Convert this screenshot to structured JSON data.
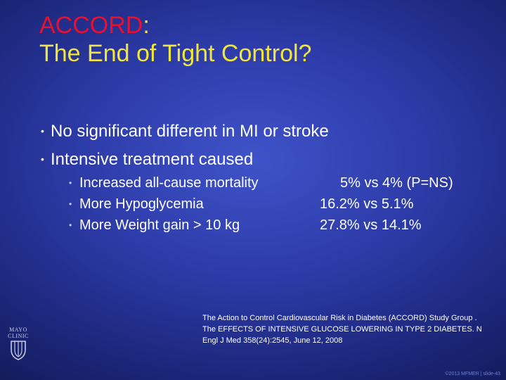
{
  "slide": {
    "title_part1": "ACCORD",
    "title_colon": ":",
    "title_line2": "The End of Tight Control?",
    "bullets": [
      "No significant different in MI or stroke",
      "Intensive treatment caused"
    ],
    "sub_items": [
      {
        "label": "Increased all-cause mortality",
        "value": "5% vs 4% (P=NS)"
      },
      {
        "label": "More Hypoglycemia",
        "value": "16.2% vs 5.1%"
      },
      {
        "label": "More Weight gain > 10 kg",
        "value": "27.8% vs 14.1%"
      }
    ],
    "citation": "The Action to Control Cardiovascular Risk in Diabetes (ACCORD) Study Group . The EFFECTS OF INTENSIVE GLUCOSE LOWERING IN TYPE 2 DIABETES. N Engl J Med 358(24):2545, June 12, 2008",
    "footer": "©2013 MFMER | slide-43",
    "logo": {
      "line1": "MAYO",
      "line2": "CLINIC"
    }
  },
  "colors": {
    "title_red": "#e8102c",
    "title_yellow": "#f2e63c",
    "background": "#2c3aa6"
  }
}
